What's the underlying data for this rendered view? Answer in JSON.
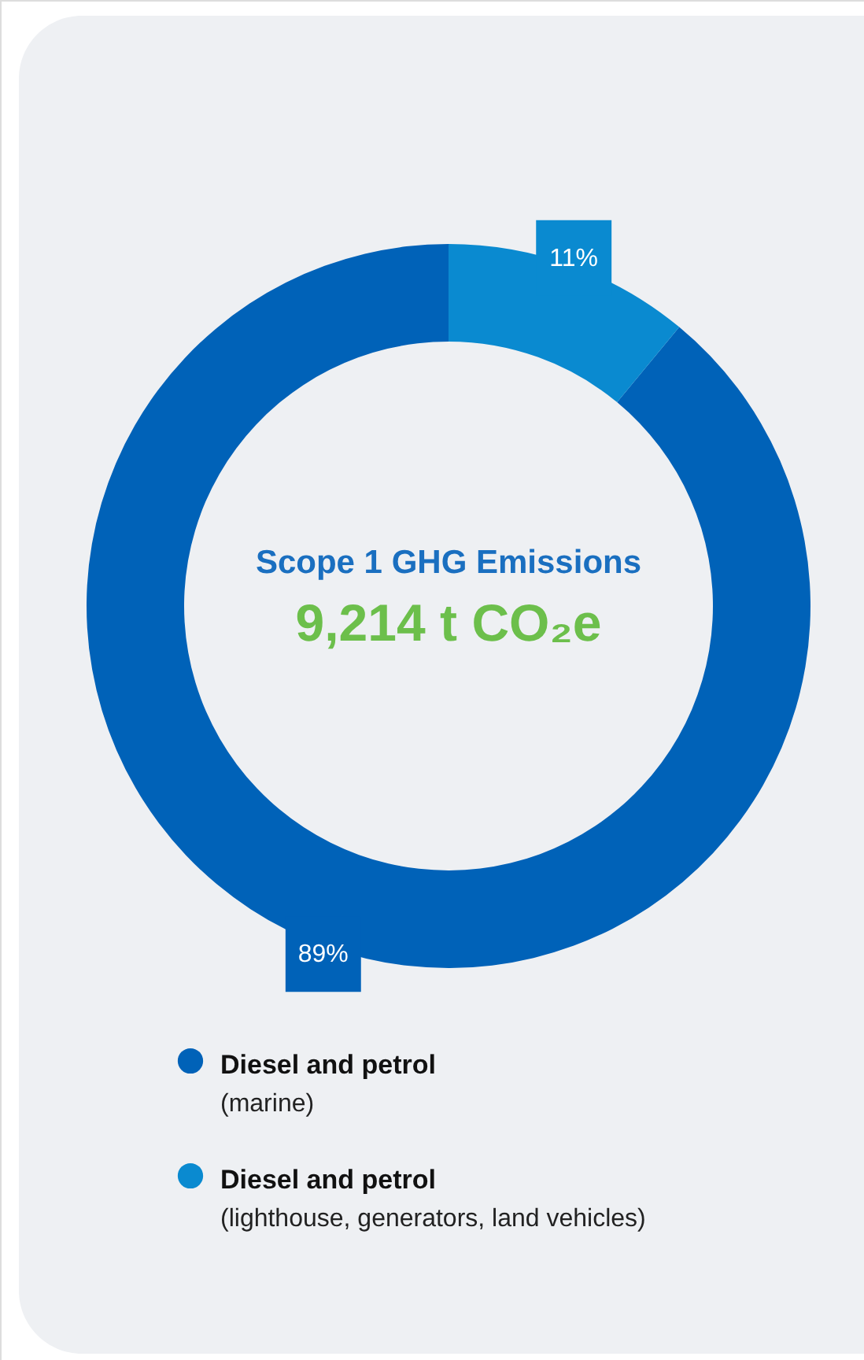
{
  "chart_data": {
    "type": "donut",
    "title": "Scope 1 GHG Emissions",
    "subtitle": "9,214 t CO₂e",
    "categories": [
      "Diesel and petrol (marine)",
      "Diesel and petrol (lighthouse, generators, land vehicles)"
    ],
    "values": [
      89,
      11
    ],
    "colors": [
      "#0062b8",
      "#0a8ad0"
    ],
    "value_labels": [
      "89%",
      "11%"
    ],
    "legend": "bottom"
  }
}
